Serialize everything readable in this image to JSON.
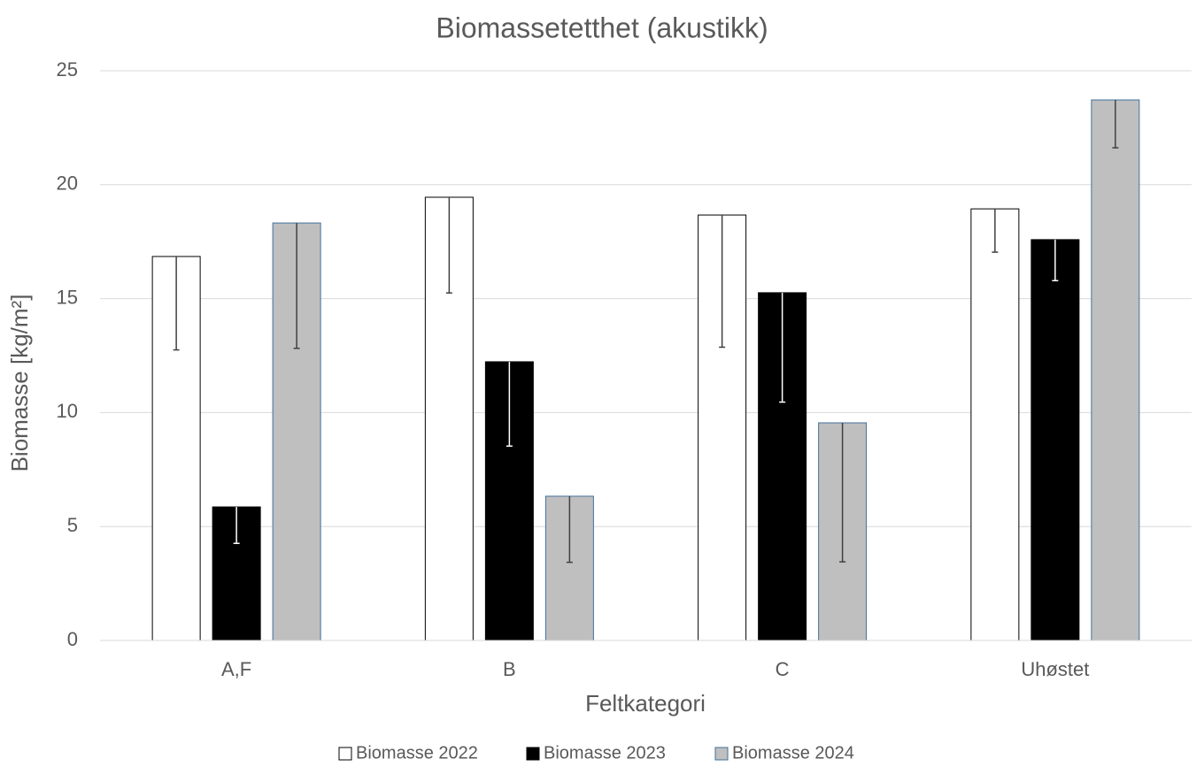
{
  "chart_data": {
    "type": "bar",
    "title": "Biomassetetthet (akustikk)",
    "x_label": "Feltkategori",
    "y_label": "Biomasse [kg/m²]",
    "categories": [
      "A,F",
      "B",
      "C",
      "Uhøstet"
    ],
    "series": [
      {
        "name": "Biomasse 2022",
        "color": "#ffffff",
        "edgecolor": "#000000",
        "error_color": "#404040",
        "values": [
          16.85,
          19.45,
          18.67,
          18.94
        ],
        "errors": [
          4.1,
          4.2,
          5.8,
          1.9
        ]
      },
      {
        "name": "Biomasse 2023",
        "color": "#000000",
        "edgecolor": "#000000",
        "error_color": "#ffffff",
        "values": [
          5.86,
          12.23,
          15.26,
          17.59
        ],
        "errors": [
          1.6,
          3.7,
          4.8,
          1.8
        ]
      },
      {
        "name": "Biomasse 2024",
        "color": "#bfbfbf",
        "edgecolor": "#41719c",
        "error_color": "#404040",
        "values": [
          18.32,
          6.33,
          9.55,
          23.72
        ],
        "errors": [
          5.5,
          2.9,
          6.1,
          2.1
        ]
      }
    ],
    "ylim": [
      0,
      25
    ],
    "yticks": [
      0,
      5,
      10,
      15,
      20,
      25
    ],
    "grid": true,
    "legend": "bottom"
  }
}
